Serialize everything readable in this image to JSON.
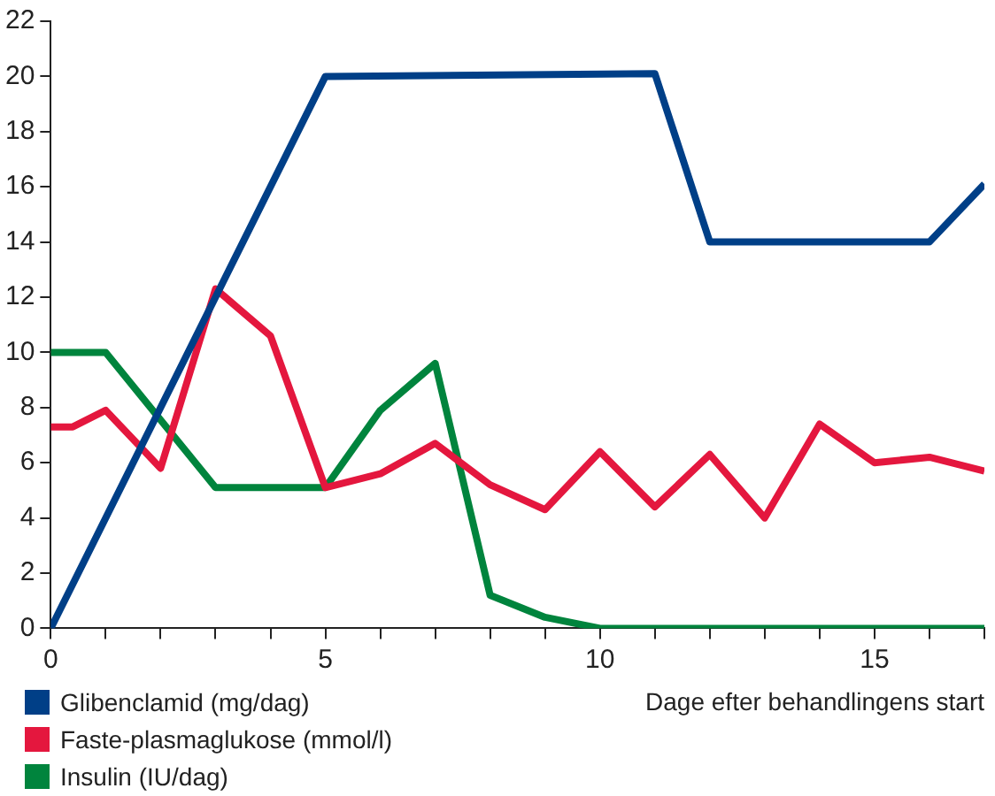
{
  "chart_data": {
    "type": "line",
    "xlabel": "Dage efter behandlingens start",
    "xlim": [
      0,
      17
    ],
    "ylim": [
      0,
      22
    ],
    "xticks": [
      0,
      {
        "value": 1,
        "label": null
      },
      {
        "value": 2,
        "label": null
      },
      {
        "value": 3,
        "label": null
      },
      {
        "value": 4,
        "label": null
      },
      5,
      {
        "value": 6,
        "label": null
      },
      {
        "value": 7,
        "label": null
      },
      {
        "value": 8,
        "label": null
      },
      {
        "value": 9,
        "label": null
      },
      10,
      {
        "value": 11,
        "label": null
      },
      {
        "value": 12,
        "label": null
      },
      {
        "value": 13,
        "label": null
      },
      {
        "value": 14,
        "label": null
      },
      15,
      {
        "value": 16,
        "label": null
      },
      {
        "value": 17,
        "label": null
      }
    ],
    "yticks": [
      0,
      2,
      4,
      6,
      8,
      10,
      12,
      14,
      16,
      18,
      20,
      22
    ],
    "grid": false,
    "legend": "bottom left",
    "marker": "none",
    "line_style": "solid",
    "series": [
      {
        "name": "Glibenclamid (mg/dag)",
        "color": "#003f87",
        "x": [
          0,
          5,
          11,
          12,
          16,
          17
        ],
        "values": [
          0,
          20,
          20.1,
          14,
          14,
          16.1
        ]
      },
      {
        "name": "Faste-plasmaglukose (mmol/l)",
        "color": "#e4173e",
        "x": [
          0,
          0.4,
          1,
          2,
          3,
          4,
          5,
          6,
          7,
          8,
          9,
          10,
          11,
          12,
          13,
          14,
          15,
          16,
          17
        ],
        "values": [
          7.3,
          7.3,
          7.9,
          5.8,
          12.3,
          10.6,
          5.1,
          5.6,
          6.7,
          5.2,
          4.3,
          6.4,
          4.4,
          6.3,
          4.0,
          7.4,
          6.0,
          6.2,
          5.7
        ]
      },
      {
        "name": "Insulin (IU/dag)",
        "color": "#00843d",
        "x": [
          0,
          1,
          3,
          4,
          5,
          6,
          7,
          8,
          9,
          10,
          11,
          12,
          13,
          14,
          15,
          16,
          17
        ],
        "values": [
          10,
          10,
          5.1,
          5.1,
          5.1,
          7.9,
          9.6,
          1.2,
          0.4,
          0,
          0,
          0,
          0,
          0,
          0,
          0,
          0
        ]
      }
    ]
  }
}
